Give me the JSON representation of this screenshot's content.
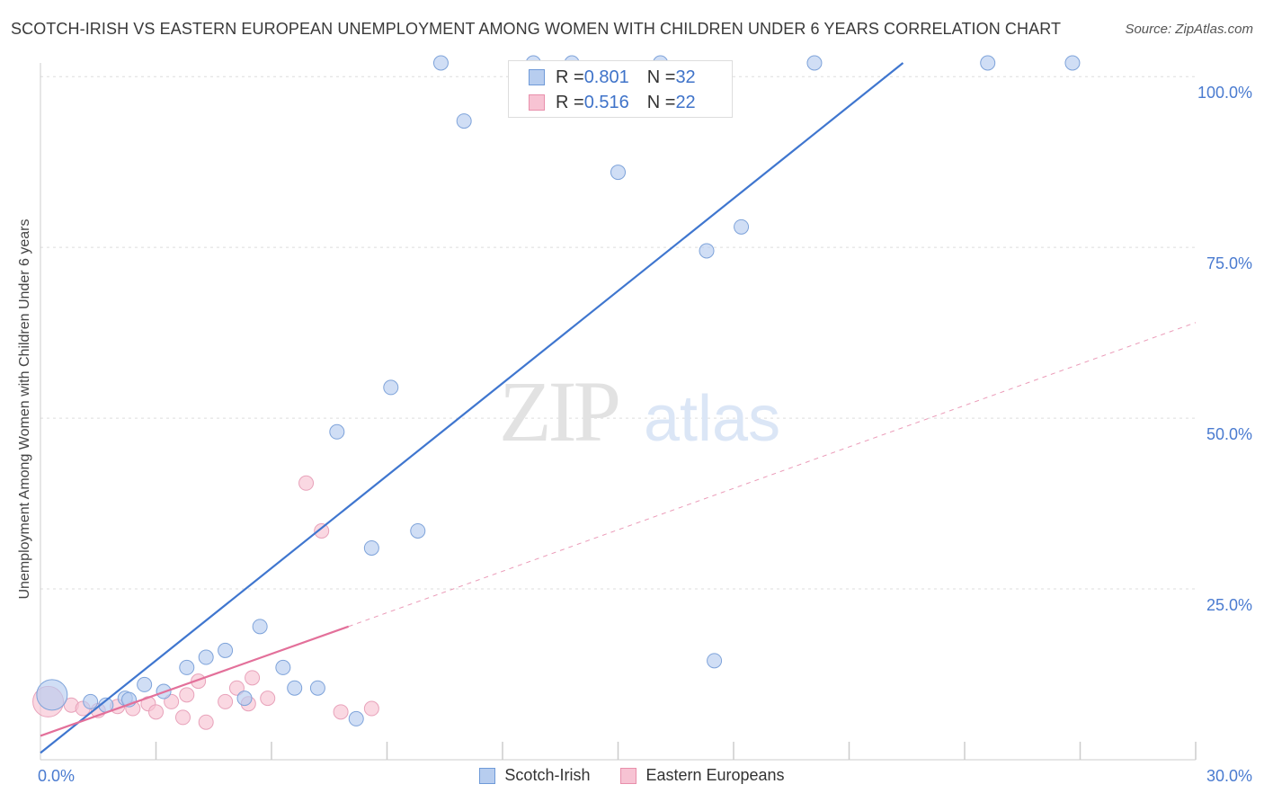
{
  "header": {
    "title": "SCOTCH-IRISH VS EASTERN EUROPEAN UNEMPLOYMENT AMONG WOMEN WITH CHILDREN UNDER 6 YEARS CORRELATION CHART",
    "source": "Source: ZipAtlas.com"
  },
  "watermark": {
    "zip": "ZIP",
    "atlas": "atlas"
  },
  "colors": {
    "blue": "#3f76cf",
    "blue_fill": "#b7cdef",
    "pink": "#e3709a",
    "pink_fill": "#f7c3d3",
    "grid": "#dddddd",
    "axis_text": "#4a7bd0"
  },
  "stats_legend": {
    "rows": [
      {
        "r_label": "R = ",
        "r_value": "0.801",
        "n_label": "N = ",
        "n_value": "32"
      },
      {
        "r_label": "R = ",
        "r_value": "0.516",
        "n_label": "N = ",
        "n_value": "22"
      }
    ]
  },
  "chart_data": {
    "type": "scatter",
    "title": "SCOTCH-IRISH VS EASTERN EUROPEAN UNEMPLOYMENT AMONG WOMEN WITH CHILDREN UNDER 6 YEARS CORRELATION CHART",
    "xlabel": "",
    "ylabel": "Unemployment Among Women with Children Under 6 years",
    "xlim": [
      0,
      30
    ],
    "ylim": [
      0,
      102
    ],
    "x_tick_labels": [
      "0.0%",
      "30.0%"
    ],
    "y_ticks": [
      25,
      50,
      75,
      100
    ],
    "y_tick_labels": [
      "25.0%",
      "50.0%",
      "75.0%",
      "100.0%"
    ],
    "grid": true,
    "series": [
      {
        "name": "Scotch-Irish",
        "color": "#3f76cf",
        "points": [
          {
            "x": 0.3,
            "y": 9.5,
            "big": true
          },
          {
            "x": 1.3,
            "y": 8.5
          },
          {
            "x": 1.7,
            "y": 8.0
          },
          {
            "x": 2.2,
            "y": 9.0
          },
          {
            "x": 2.3,
            "y": 8.8
          },
          {
            "x": 2.7,
            "y": 11.0
          },
          {
            "x": 3.2,
            "y": 10.0
          },
          {
            "x": 3.8,
            "y": 13.5
          },
          {
            "x": 4.3,
            "y": 15.0
          },
          {
            "x": 4.8,
            "y": 16.0
          },
          {
            "x": 5.3,
            "y": 9.0
          },
          {
            "x": 5.7,
            "y": 19.5
          },
          {
            "x": 6.3,
            "y": 13.5
          },
          {
            "x": 6.6,
            "y": 10.5
          },
          {
            "x": 7.2,
            "y": 10.5
          },
          {
            "x": 7.7,
            "y": 48.0
          },
          {
            "x": 8.2,
            "y": 6.0
          },
          {
            "x": 8.6,
            "y": 31.0
          },
          {
            "x": 9.1,
            "y": 54.5
          },
          {
            "x": 9.8,
            "y": 33.5
          },
          {
            "x": 10.4,
            "y": 102.0
          },
          {
            "x": 11.0,
            "y": 93.5
          },
          {
            "x": 12.8,
            "y": 102.0
          },
          {
            "x": 13.8,
            "y": 102.0
          },
          {
            "x": 15.0,
            "y": 86.0
          },
          {
            "x": 16.1,
            "y": 102.0
          },
          {
            "x": 17.3,
            "y": 74.5
          },
          {
            "x": 17.5,
            "y": 14.5
          },
          {
            "x": 18.2,
            "y": 78.0
          },
          {
            "x": 20.1,
            "y": 102.0
          },
          {
            "x": 24.6,
            "y": 102.0
          },
          {
            "x": 26.8,
            "y": 102.0
          }
        ]
      },
      {
        "name": "Eastern Europeans",
        "color": "#e3709a",
        "points": [
          {
            "x": 0.2,
            "y": 8.5,
            "big": true
          },
          {
            "x": 0.8,
            "y": 8.0
          },
          {
            "x": 1.1,
            "y": 7.5
          },
          {
            "x": 1.5,
            "y": 7.2
          },
          {
            "x": 2.0,
            "y": 7.8
          },
          {
            "x": 2.4,
            "y": 7.5
          },
          {
            "x": 2.8,
            "y": 8.2
          },
          {
            "x": 3.0,
            "y": 7.0
          },
          {
            "x": 3.4,
            "y": 8.5
          },
          {
            "x": 3.7,
            "y": 6.2
          },
          {
            "x": 3.8,
            "y": 9.5
          },
          {
            "x": 4.1,
            "y": 11.5
          },
          {
            "x": 4.3,
            "y": 5.5
          },
          {
            "x": 4.8,
            "y": 8.5
          },
          {
            "x": 5.1,
            "y": 10.5
          },
          {
            "x": 5.4,
            "y": 8.2
          },
          {
            "x": 5.5,
            "y": 12.0
          },
          {
            "x": 5.9,
            "y": 9.0
          },
          {
            "x": 6.9,
            "y": 40.5
          },
          {
            "x": 7.3,
            "y": 33.5
          },
          {
            "x": 7.8,
            "y": 7.0
          },
          {
            "x": 8.6,
            "y": 7.5
          }
        ]
      }
    ],
    "trendlines": [
      {
        "series": "Scotch-Irish",
        "x0": 0,
        "y0": 1.0,
        "x1": 22.4,
        "y1": 102.0,
        "style": "solid"
      },
      {
        "series": "Eastern Europeans",
        "x0": 0,
        "y0": 3.5,
        "x1": 8.0,
        "y1": 19.5,
        "style": "solid"
      },
      {
        "series": "Eastern Europeans",
        "x0": 8.0,
        "y0": 19.5,
        "x1": 30.0,
        "y1": 64.0,
        "style": "dashed"
      }
    ]
  },
  "legend": {
    "items": [
      "Scotch-Irish",
      "Eastern Europeans"
    ]
  }
}
